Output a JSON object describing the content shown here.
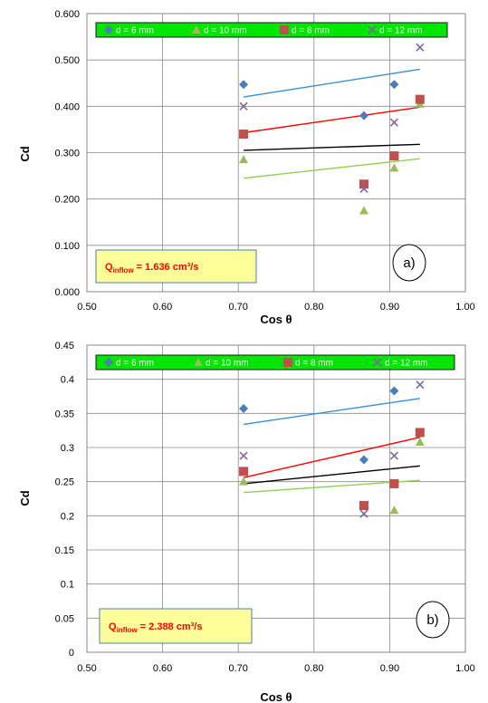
{
  "chart_data": [
    {
      "type": "scatter",
      "panel_label": "a)",
      "xlabel": "Cos θ",
      "ylabel": "Cd",
      "xlim": [
        0.5,
        1.0
      ],
      "ylim": [
        0.0,
        0.6
      ],
      "x_ticks": [
        "0.50",
        "0.60",
        "0.70",
        "0.80",
        "0.90",
        "1.00"
      ],
      "y_ticks": [
        "0.000",
        "0.100",
        "0.200",
        "0.300",
        "0.400",
        "0.500",
        "0.600"
      ],
      "grid": true,
      "legend_position": "top",
      "annotation": {
        "q": "Q",
        "sub": "inflow",
        "value": "= 1.636 cm³/s"
      },
      "series": [
        {
          "name": "d = 6 mm",
          "marker": "diamond",
          "color": "#4a7ebb",
          "x": [
            0.707,
            0.866,
            0.906
          ],
          "y": [
            0.447,
            0.38,
            0.447
          ],
          "trend": {
            "x": [
              0.707,
              0.94
            ],
            "y": [
              0.42,
              0.48
            ],
            "color": "#3a8fd6"
          }
        },
        {
          "name": "d = 10 mm",
          "marker": "triangle",
          "color": "#9bbb59",
          "x": [
            0.707,
            0.866,
            0.906,
            0.94
          ],
          "y": [
            0.285,
            0.175,
            0.267,
            0.405
          ],
          "trend": {
            "x": [
              0.707,
              0.94
            ],
            "y": [
              0.245,
              0.287
            ],
            "color": "#8fd14f"
          }
        },
        {
          "name": "d = 8 mm",
          "marker": "square",
          "color": "#c0504d",
          "x": [
            0.707,
            0.866,
            0.906,
            0.94
          ],
          "y": [
            0.34,
            0.232,
            0.293,
            0.415
          ],
          "trend": {
            "x": [
              0.707,
              0.94
            ],
            "y": [
              0.343,
              0.398
            ],
            "color": "#ff0000"
          }
        },
        {
          "name": "d = 12 mm",
          "marker": "x",
          "color": "#8064a2",
          "x": [
            0.707,
            0.866,
            0.906,
            0.94
          ],
          "y": [
            0.4,
            0.222,
            0.365,
            0.527
          ],
          "trend": {
            "x": [
              0.707,
              0.94
            ],
            "y": [
              0.305,
              0.318
            ],
            "color": "#000000"
          }
        }
      ]
    },
    {
      "type": "scatter",
      "panel_label": "b)",
      "xlabel": "Cos θ",
      "ylabel": "Cd",
      "xlim": [
        0.5,
        1.0
      ],
      "ylim": [
        0.0,
        0.45
      ],
      "x_ticks": [
        "0.50",
        "0.60",
        "0.70",
        "0.80",
        "0.90",
        "1.00"
      ],
      "y_ticks": [
        "0",
        "0.05",
        "0.1",
        "0.15",
        "0.2",
        "0.25",
        "0.3",
        "0.35",
        "0.4",
        "0.45"
      ],
      "grid": true,
      "legend_position": "top",
      "annotation": {
        "q": "Q",
        "sub": "inflow",
        "value": "= 2.388 cm³/s"
      },
      "series": [
        {
          "name": "d = 6 mm",
          "marker": "diamond",
          "color": "#4a7ebb",
          "x": [
            0.707,
            0.866,
            0.906
          ],
          "y": [
            0.357,
            0.282,
            0.383
          ],
          "trend": {
            "x": [
              0.707,
              0.94
            ],
            "y": [
              0.334,
              0.372
            ],
            "color": "#3a8fd6"
          }
        },
        {
          "name": "d = 10 mm",
          "marker": "triangle",
          "color": "#9bbb59",
          "x": [
            0.707,
            0.906,
            0.94
          ],
          "y": [
            0.25,
            0.208,
            0.308
          ],
          "trend": {
            "x": [
              0.707,
              0.94
            ],
            "y": [
              0.234,
              0.252
            ],
            "color": "#8fd14f"
          }
        },
        {
          "name": "d = 8 mm",
          "marker": "square",
          "color": "#c0504d",
          "x": [
            0.707,
            0.866,
            0.906,
            0.94
          ],
          "y": [
            0.265,
            0.215,
            0.247,
            0.322
          ],
          "trend": {
            "x": [
              0.707,
              0.94
            ],
            "y": [
              0.256,
              0.315
            ],
            "color": "#ff0000"
          }
        },
        {
          "name": "d = 12 mm",
          "marker": "x",
          "color": "#8064a2",
          "x": [
            0.707,
            0.866,
            0.906,
            0.94
          ],
          "y": [
            0.288,
            0.203,
            0.288,
            0.392
          ],
          "trend": {
            "x": [
              0.707,
              0.94
            ],
            "y": [
              0.247,
              0.273
            ],
            "color": "#000000"
          }
        }
      ]
    }
  ]
}
